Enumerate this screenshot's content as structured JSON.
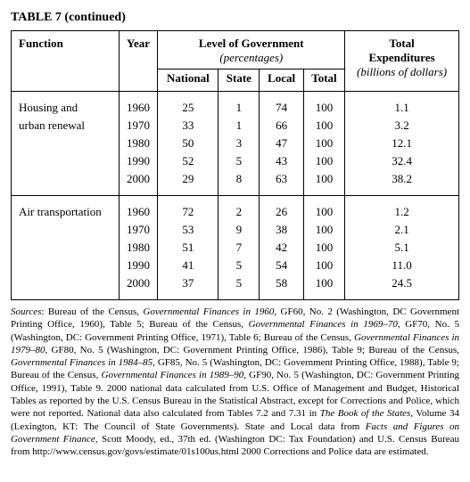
{
  "title": "TABLE 7 (continued)",
  "columns": {
    "function": "Function",
    "year": "Year",
    "levelGroup": "Level of Government",
    "levelSub": "(percentages)",
    "national": "National",
    "state": "State",
    "local": "Local",
    "total": "Total",
    "expTop": "Total",
    "expMid": "Expenditures",
    "expSub": "(billions of dollars)"
  },
  "groups": [
    {
      "function1": "Housing and",
      "function2": "urban renewal",
      "rows": [
        {
          "year": "1960",
          "national": "25",
          "state": "1",
          "local": "74",
          "total": "100",
          "exp": "1.1"
        },
        {
          "year": "1970",
          "national": "33",
          "state": "1",
          "local": "66",
          "total": "100",
          "exp": "3.2"
        },
        {
          "year": "1980",
          "national": "50",
          "state": "3",
          "local": "47",
          "total": "100",
          "exp": "12.1"
        },
        {
          "year": "1990",
          "national": "52",
          "state": "5",
          "local": "43",
          "total": "100",
          "exp": "32.4"
        },
        {
          "year": "2000",
          "national": "29",
          "state": "8",
          "local": "63",
          "total": "100",
          "exp": "38.2"
        }
      ]
    },
    {
      "function1": "Air transportation",
      "function2": "",
      "rows": [
        {
          "year": "1960",
          "national": "72",
          "state": "2",
          "local": "26",
          "total": "100",
          "exp": "1.2"
        },
        {
          "year": "1970",
          "national": "53",
          "state": "9",
          "local": "38",
          "total": "100",
          "exp": "2.1"
        },
        {
          "year": "1980",
          "national": "51",
          "state": "7",
          "local": "42",
          "total": "100",
          "exp": "5.1"
        },
        {
          "year": "1990",
          "national": "41",
          "state": "5",
          "local": "54",
          "total": "100",
          "exp": "11.0"
        },
        {
          "year": "2000",
          "national": "37",
          "state": "5",
          "local": "58",
          "total": "100",
          "exp": "24.5"
        }
      ]
    }
  ],
  "sourcesLabel": "Sources",
  "sources": ": Bureau of the Census, <i>Governmental Finances in 1960</i>, GF60, No. 2 (Washington, DC Government Printing Office, 1960), Table 5; Bureau of the Census, <i>Governmental Finances in 1969–70</i>, GF70, No. 5 (Washington, DC: Government Printing Office, 1971), Table 6; Bureau of the Census, <i>Governmental Finances in 1979–80</i>, GF80, No. 5 (Washington, DC: Government Printing Office, 1986), Table 9; Bureau of the Census, <i>Governmental Finances in 1984–85</i>, GF85, No. 5 (Washington, DC: Government Printing Office, 1988), Table 9; Bureau of the Census, <i>Governmental Finances in 1989–90</i>, GF90, No. 5 (Washington, DC: Government Printing Office, 1991), Table 9. 2000 national data calculated from U.S. Office of Management and Budget, Historical Tables as reported by the U.S. Census Bureau in the Statistical Abstract, except for Corrections and Police, which were not reported. National data also calculated from Tables 7.2 and 7.31 in <i>The Book of the States</i>, Volume 34 (Lexington, KT: The Council of State Governments). State and Local data from <i>Facts and Figures on Government Finance</i>, Scott Moody, ed., 37th ed. (Washington DC: Tax Foundation) and U.S. Census Bureau from http://www.census.gov/govs/estimate/01s100us.html 2000 Corrections and Police data are estimated."
}
